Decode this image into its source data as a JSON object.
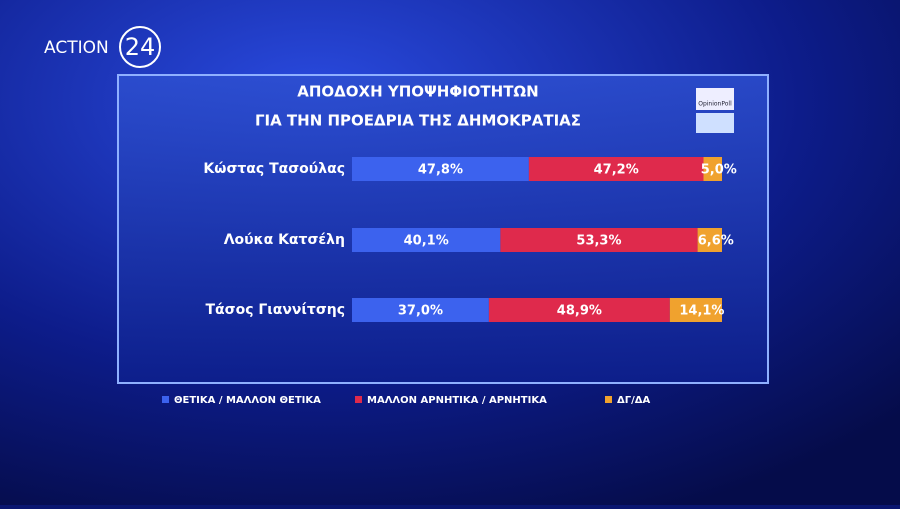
{
  "chart_data": {
    "type": "stacked-bar",
    "logo_text": "ACTION",
    "logo_number": "24",
    "pollster": "OpinionPoll",
    "title": "ΑΠΟΔΟΧΗ ΥΠΟΨΗΦΙΟΤΗΤΩΝ",
    "subtitle": "ΓΙΑ ΤΗΝ ΠΡΟΕΔΡΙΑ ΤΗΣ ΔΗΜΟΚΡΑΤΙΑΣ",
    "categories": [
      "Κώστας Τασούλας",
      "Λούκα Κατσέλη",
      "Τάσος Γιαννίτσης"
    ],
    "series": [
      {
        "name": "ΘΕΤΙΚΑ / ΜΑΛΛΟΝ ΘΕΤΙΚΑ",
        "color": "#3c62ee",
        "values": [
          47.8,
          40.1,
          37.0
        ],
        "value_labels": [
          "47,8%",
          "40,1%",
          "37,0%"
        ]
      },
      {
        "name": "ΜΑΛΛΟΝ ΑΡΝΗΤΙΚΑ / ΑΡΝΗΤΙΚΑ",
        "color": "#df2a4c",
        "values": [
          47.2,
          53.3,
          48.9
        ],
        "value_labels": [
          "47,2%",
          "53,3%",
          "48,9%"
        ]
      },
      {
        "name": "ΔΓ/ΔΑ",
        "color": "#f0a22e",
        "values": [
          5.0,
          6.6,
          14.1
        ],
        "value_labels": [
          "5,0%",
          "6,6%",
          "14,1%"
        ]
      }
    ]
  }
}
